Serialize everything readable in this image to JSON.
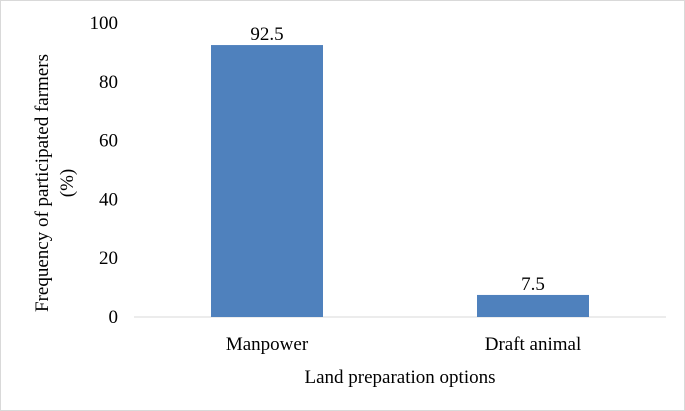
{
  "chart_data": {
    "type": "bar",
    "categories": [
      "Manpower",
      "Draft animal"
    ],
    "values": [
      92.5,
      7.5
    ],
    "data_labels": [
      "92.5",
      "7.5"
    ],
    "xlabel": "Land preparation options",
    "ylabel_line1": "Frequency of participated farmers",
    "ylabel_line2": "(%)",
    "ylim": [
      0,
      100
    ],
    "yticks": [
      0,
      20,
      40,
      60,
      80,
      100
    ],
    "ytick_labels": [
      "0",
      "20",
      "40",
      "60",
      "80",
      "100"
    ],
    "grid": false,
    "legend": "none",
    "bar_color": "#4f81bd"
  }
}
